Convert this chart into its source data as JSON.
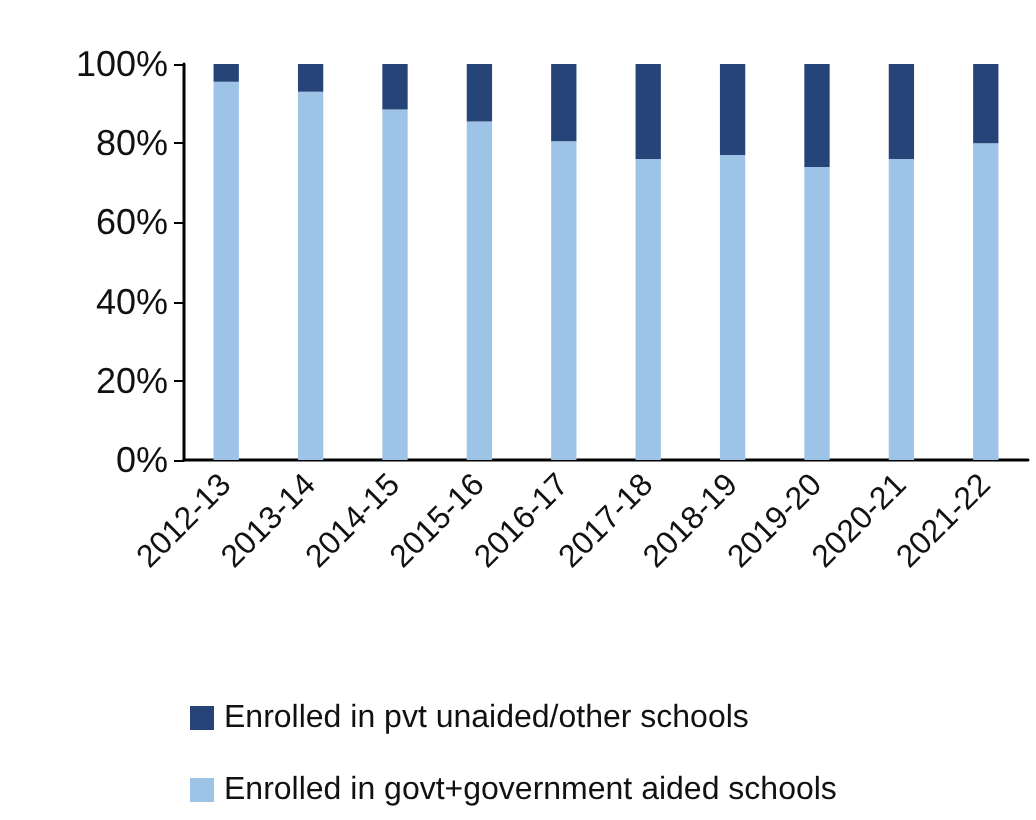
{
  "chart_data": {
    "type": "bar",
    "stacked": true,
    "categories": [
      "2012-13",
      "2013-14",
      "2014-15",
      "2015-16",
      "2016-17",
      "2017-18",
      "2018-19",
      "2019-20",
      "2020-21",
      "2021-22"
    ],
    "series": [
      {
        "name": "Enrolled in govt+government aided schools",
        "color": "#9dc3e6",
        "values": [
          95.5,
          93,
          88.5,
          85.5,
          80.5,
          76,
          77,
          74,
          76,
          80
        ]
      },
      {
        "name": "Enrolled in pvt unaided/other schools",
        "color": "#264478",
        "values": [
          4.5,
          7,
          11.5,
          14.5,
          19.5,
          24,
          23,
          26,
          24,
          20
        ]
      }
    ],
    "ylim": [
      0,
      100
    ],
    "yticks": [
      {
        "value": 0,
        "label": "0%"
      },
      {
        "value": 20,
        "label": "20%"
      },
      {
        "value": 40,
        "label": "40%"
      },
      {
        "value": 60,
        "label": "60%"
      },
      {
        "value": 80,
        "label": "80%"
      },
      {
        "value": 100,
        "label": "100%"
      }
    ],
    "grid": false,
    "legend": "bottom"
  }
}
